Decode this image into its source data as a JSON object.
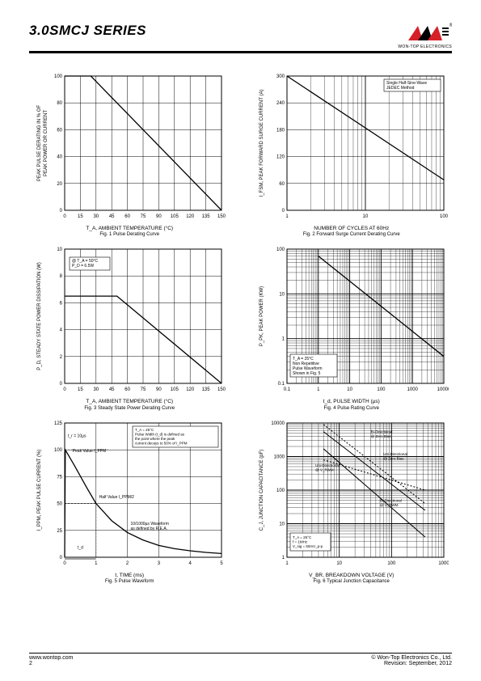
{
  "header": {
    "title": "3.0SMCJ SERIES",
    "logo_brand": "WON-TOP ELECTRONICS",
    "logo_colors": {
      "red": "#d62027",
      "black": "#000000"
    }
  },
  "footer": {
    "left": "www.wontop.com",
    "page": "2",
    "right1": "© Won-Top Electronics Co., Ltd.",
    "right2": "Revision: September, 2012"
  },
  "fig1": {
    "type": "line",
    "title_line1": "T_A, AMBIENT TEMPERATURE (°C)",
    "title_line2": "Fig. 1 Pulse Derating Curve",
    "ylabel": "PEAK PULSE DERATING IN % OF\nPEAK POWER OR CURRENT",
    "xlim": [
      0,
      150
    ],
    "ylim": [
      0,
      100
    ],
    "xtick_step": 15,
    "ytick_step": 20,
    "xticks": [
      0,
      15,
      30,
      45,
      60,
      75,
      90,
      105,
      120,
      135,
      150
    ],
    "yticks": [
      0,
      20,
      40,
      60,
      80,
      100
    ],
    "line_color": "#000000",
    "grid_color": "#000000",
    "line_width": 1.3,
    "data": [
      [
        0,
        100
      ],
      [
        25,
        100
      ],
      [
        150,
        0
      ]
    ]
  },
  "fig2": {
    "type": "line-logx",
    "title_line1": "NUMBER OF CYCLES AT 60Hz",
    "title_line2": "Fig. 2 Forward Surge Current Derating Curve",
    "ylabel": "I_FSM, PEAK FORWARD SURGE CURRENT (A)",
    "xlim": [
      1,
      100
    ],
    "ylim": [
      0,
      300
    ],
    "ytick_step": 60,
    "yticks": [
      0,
      60,
      120,
      180,
      240,
      300
    ],
    "xticks": [
      1,
      10,
      100
    ],
    "annotation": "Single Half-Sine-Wave\nJEDEC Method",
    "line_color": "#000000",
    "grid_color": "#000000",
    "line_width": 1.3,
    "data": [
      [
        1,
        300
      ],
      [
        100,
        68
      ]
    ]
  },
  "fig3": {
    "type": "line",
    "title_line1": "T_A, AMBIENT TEMPERATURE (°C)",
    "title_line2": "Fig. 3 Steady State Power Derating Curve",
    "ylabel": "P_D, STEADY STATE POWER DISSIPATION (W)",
    "xlim": [
      0,
      150
    ],
    "ylim": [
      0,
      10
    ],
    "xtick_step": 15,
    "ytick_step": 2,
    "xticks": [
      0,
      15,
      30,
      45,
      60,
      75,
      90,
      105,
      120,
      135,
      150
    ],
    "yticks": [
      0,
      2,
      4,
      6,
      8,
      10
    ],
    "annotation": "@ T_A = 50°C\nP_D = 6.5W",
    "line_color": "#000000",
    "grid_color": "#000000",
    "line_width": 1.3,
    "data": [
      [
        0,
        6.5
      ],
      [
        50,
        6.5
      ],
      [
        150,
        0
      ]
    ]
  },
  "fig4": {
    "type": "line-loglog",
    "title_line1": "t_d, PULSE WIDTH (µs)",
    "title_line2": "Fig. 4 Pulse Rating Curve",
    "ylabel": "P_PK, PEAK POWER (KW)",
    "xlim": [
      0.1,
      10000
    ],
    "ylim": [
      0.1,
      100
    ],
    "xticks": [
      0.1,
      1,
      10,
      100,
      1000,
      10000
    ],
    "yticks": [
      0.1,
      1,
      10,
      100
    ],
    "annotation": "T_A = 25°C\nNon Repetitive\nPulse Waveform\nShown in Fig. 5",
    "line_color": "#000000",
    "grid_color": "#000000",
    "line_width": 1.3,
    "data": [
      [
        1,
        70
      ],
      [
        10000,
        0.4
      ]
    ]
  },
  "fig5": {
    "type": "curve",
    "title_line1": "t, TIME (ms)",
    "title_line2": "Fig. 5 Pulse Waveform",
    "ylabel": "I_PPM, PEAK PULSE CURRENT (%)",
    "xlim": [
      0,
      5
    ],
    "ylim": [
      0,
      125
    ],
    "xticks": [
      0,
      1,
      2,
      3,
      4,
      5
    ],
    "yticks": [
      0,
      25,
      50,
      75,
      100,
      125
    ],
    "annotations": [
      "T_A = 25°C\nPulse Width (t_d) is defined as\nthe point where the peak\ncurrent decays to 50% of I_PPM",
      "t_r = 10µs",
      "Peak Value I_PPM",
      "Half Value I_PPM/2",
      "10/1000µs Waveform\nas defined by R.E.A.",
      "t_d"
    ],
    "line_color": "#000000",
    "grid_color": "#000000",
    "line_width": 1.3,
    "data": [
      [
        0,
        0
      ],
      [
        0.02,
        100
      ],
      [
        0.3,
        86
      ],
      [
        0.7,
        65
      ],
      [
        1.0,
        50
      ],
      [
        1.5,
        34
      ],
      [
        2.0,
        23
      ],
      [
        2.5,
        16
      ],
      [
        3.0,
        11
      ],
      [
        3.5,
        8
      ],
      [
        4.0,
        6
      ],
      [
        4.5,
        4.5
      ],
      [
        5.0,
        3.5
      ]
    ]
  },
  "fig6": {
    "type": "multi-line-loglog",
    "title_line1": "V_BR, BREAKDOWN VOLTAGE (V)",
    "title_line2": "Fig. 6 Typical Junction Capacitance",
    "ylabel": "C_J, JUNCTION CAPACITANCE (pF)",
    "xlim": [
      1,
      1000
    ],
    "ylim": [
      1,
      10000
    ],
    "xticks": [
      1,
      10,
      100,
      1000
    ],
    "yticks": [
      1,
      10,
      100,
      1000,
      10000
    ],
    "annotation_box": "T_A = 25°C\nf = 1MHz\nV_sig = 50mV_p-p",
    "series_labels": [
      "Bi-Directional\n@ Zero Bias",
      "Uni-Directional\n@ Zero Bias",
      "Uni-Directional\n@ V_RWM",
      "Bi-Directional\n@ V_RWM"
    ],
    "line_color": "#000000",
    "grid_color": "#000000",
    "line_width": 1.0,
    "series": [
      {
        "dash": "2,2",
        "data": [
          [
            5,
            9000
          ],
          [
            440,
            40
          ]
        ]
      },
      {
        "dash": "none",
        "data": [
          [
            5,
            5500
          ],
          [
            440,
            25
          ]
        ]
      },
      {
        "dash": "none",
        "data": [
          [
            5,
            1700
          ],
          [
            440,
            4
          ]
        ]
      },
      {
        "dash": "2,2",
        "data": [
          [
            5,
            800
          ],
          [
            440,
            100
          ]
        ]
      }
    ]
  }
}
